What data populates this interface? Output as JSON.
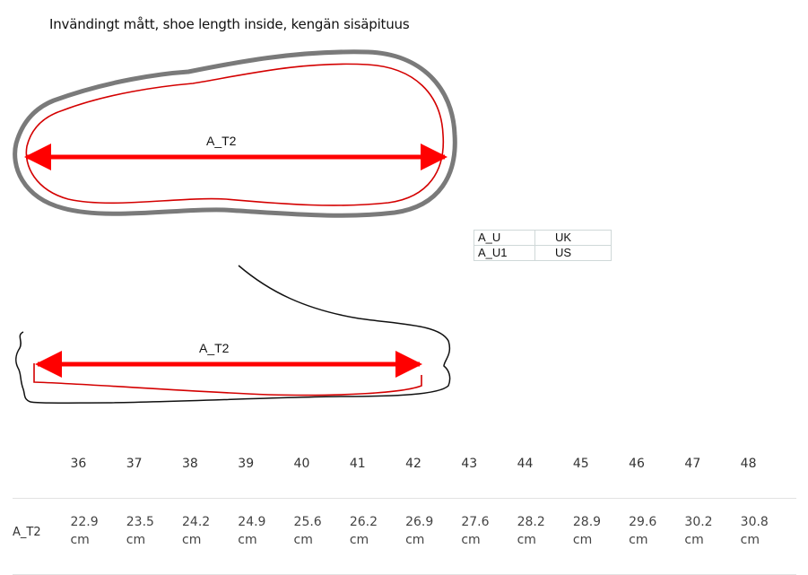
{
  "title": "Invändingt mått, shoe length inside, kengän sisäpituus",
  "diagram_labels": {
    "top_arrow": "A_T2",
    "side_arrow": "A_T2"
  },
  "colors": {
    "arrow": "#ff0000",
    "insole_outline": "#d40000",
    "sole_outline": "#7a7a7a"
  },
  "legend": [
    {
      "key": "A_U",
      "value": "UK"
    },
    {
      "key": "A_U1",
      "value": "US"
    }
  ],
  "size_table": {
    "row_label": "A_T2",
    "sizes": [
      "36",
      "37",
      "38",
      "39",
      "40",
      "41",
      "42",
      "43",
      "44",
      "45",
      "46",
      "47",
      "48"
    ],
    "values": [
      "22.9 cm",
      "23.5 cm",
      "24.2 cm",
      "24.9 cm",
      "25.6 cm",
      "26.2 cm",
      "26.9 cm",
      "27.6 cm",
      "28.2 cm",
      "28.9 cm",
      "29.6 cm",
      "30.2 cm",
      "30.8 cm"
    ]
  }
}
